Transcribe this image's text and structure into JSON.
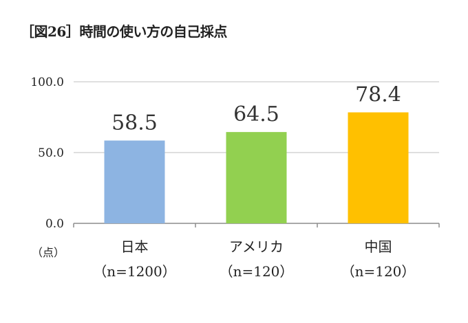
{
  "chart_data": {
    "type": "bar",
    "title": "［図26］時間の使い方の自己採点",
    "ylabel": "（点）",
    "xlabel": "",
    "ylim": [
      0,
      100
    ],
    "yticks": [
      "0.0",
      "50.0",
      "100.0"
    ],
    "grid": true,
    "categories": [
      "日本",
      "アメリカ",
      "中国"
    ],
    "sample_sizes": [
      "（n=1200）",
      "（n=120）",
      "（n=120）"
    ],
    "values": [
      58.5,
      64.5,
      78.4
    ],
    "data_labels": [
      "58.5",
      "64.5",
      "78.4"
    ],
    "colors": [
      "#8db4e2",
      "#92d050",
      "#ffc000"
    ]
  }
}
